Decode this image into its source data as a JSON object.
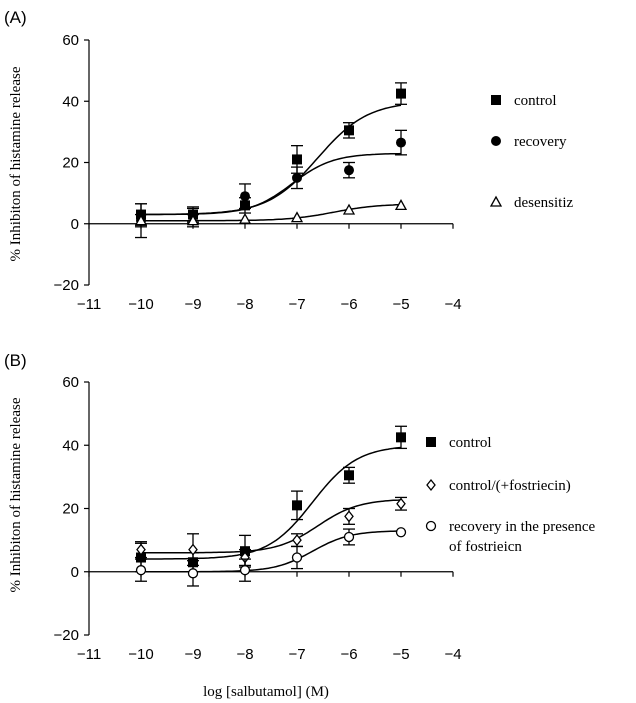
{
  "chart_data": [
    {
      "type": "scatter",
      "panel_label": "(A)",
      "ylabel": "% Inhibiton of histamine release",
      "xlabel": "",
      "xlim": [
        -11,
        -4
      ],
      "ylim": [
        -20,
        60
      ],
      "xticks": [
        -11,
        -10,
        -9,
        -8,
        -7,
        -6,
        -5,
        -4
      ],
      "yticks": [
        -20,
        0,
        20,
        40,
        60
      ],
      "xtick_labels": [
        "−11",
        "−10",
        "−9",
        "−8",
        "−7",
        "−6",
        "−5",
        "−4"
      ],
      "ytick_labels": [
        "−20",
        "0",
        "20",
        "40",
        "60"
      ],
      "legend_position": "right",
      "series": [
        {
          "name": "control",
          "marker": "filled-square",
          "x": [
            -10,
            -9,
            -8,
            -7,
            -6,
            -5
          ],
          "y": [
            3,
            3,
            6,
            21,
            30.5,
            42.5
          ],
          "err": [
            3.5,
            2.5,
            2.5,
            4.5,
            2.5,
            3.5
          ],
          "curve": {
            "bottom": 3,
            "top": 40,
            "ec50": -6.6,
            "hill": 0.9
          }
        },
        {
          "name": "recovery",
          "marker": "filled-circle",
          "x": [
            -10,
            -9,
            -8,
            -7,
            -6,
            -5
          ],
          "y": [
            1,
            2.5,
            9,
            15,
            17.5,
            26.5
          ],
          "err": [
            5.5,
            2.5,
            4,
            3.5,
            2.5,
            4
          ],
          "curve": {
            "bottom": 3,
            "top": 23,
            "ec50": -7.1,
            "hill": 1.1
          }
        },
        {
          "name": "desensitiz",
          "marker": "open-triangle",
          "x": [
            -10,
            -9,
            -8,
            -7,
            -6,
            -5
          ],
          "y": [
            1,
            1,
            1.5,
            2,
            4.5,
            6
          ],
          "err": [
            2,
            2,
            0,
            0,
            0,
            0
          ],
          "curve": {
            "bottom": 1,
            "top": 6.5,
            "ec50": -6.3,
            "hill": 1
          }
        }
      ]
    },
    {
      "type": "scatter",
      "panel_label": "(B)",
      "ylabel": "% Inhibiton of histamine release",
      "xlabel": "log [salbutamol] (M)",
      "xlim": [
        -11,
        -4
      ],
      "ylim": [
        -20,
        60
      ],
      "xticks": [
        -11,
        -10,
        -9,
        -8,
        -7,
        -6,
        -5,
        -4
      ],
      "yticks": [
        -20,
        0,
        20,
        40,
        60
      ],
      "xtick_labels": [
        "−11",
        "−10",
        "−9",
        "−8",
        "−7",
        "−6",
        "−5",
        "−4"
      ],
      "ytick_labels": [
        "−20",
        "0",
        "20",
        "40",
        "60"
      ],
      "legend_position": "right",
      "series": [
        {
          "name": "control",
          "marker": "filled-square",
          "x": [
            -10,
            -9,
            -8,
            -7,
            -6,
            -5
          ],
          "y": [
            4.5,
            3,
            6.5,
            21,
            30.5,
            42.5
          ],
          "err": [
            4.5,
            3,
            5,
            4.5,
            2.5,
            3.5
          ],
          "curve": {
            "bottom": 4,
            "top": 40,
            "ec50": -6.7,
            "hill": 1.0
          }
        },
        {
          "name": "control/(+fostriecin)",
          "marker": "open-diamond",
          "x": [
            -10,
            -9,
            -8,
            -7,
            -6,
            -5
          ],
          "y": [
            7,
            7,
            4.5,
            10,
            17.5,
            21.5
          ],
          "err": [
            2.5,
            5,
            2.5,
            2,
            2.5,
            2
          ],
          "curve": {
            "bottom": 6,
            "top": 23,
            "ec50": -6.6,
            "hill": 1.1
          }
        },
        {
          "name_lines": [
            "recovery in the presence",
            "of fostrieicn"
          ],
          "name": "recovery in the presence of fostrieicn",
          "marker": "open-circle",
          "x": [
            -10,
            -9,
            -8,
            -7,
            -6,
            -5
          ],
          "y": [
            0.5,
            -0.5,
            0.5,
            4.5,
            11,
            12.5
          ],
          "err": [
            3.5,
            4,
            3.5,
            3.5,
            2.5,
            0
          ],
          "curve": {
            "bottom": 0,
            "top": 13,
            "ec50": -6.7,
            "hill": 1.2
          }
        }
      ]
    }
  ]
}
